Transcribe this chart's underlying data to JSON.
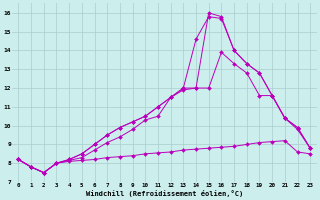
{
  "xlabel": "Windchill (Refroidissement éolien,°C)",
  "background_color": "#cceeed",
  "grid_color": "#aacccc",
  "line_color": "#bb00bb",
  "markersize": 2,
  "xlim": [
    -0.5,
    23.5
  ],
  "ylim": [
    7,
    16.5
  ],
  "xticks": [
    0,
    1,
    2,
    3,
    4,
    5,
    6,
    7,
    8,
    9,
    10,
    11,
    12,
    13,
    14,
    15,
    16,
    17,
    18,
    19,
    20,
    21,
    22,
    23
  ],
  "yticks": [
    7,
    8,
    9,
    10,
    11,
    12,
    13,
    14,
    15,
    16
  ],
  "lines": [
    [
      8.2,
      7.8,
      7.5,
      8.0,
      8.1,
      8.15,
      8.2,
      8.3,
      8.35,
      8.4,
      8.5,
      8.55,
      8.6,
      8.7,
      8.75,
      8.8,
      8.85,
      8.9,
      9.0,
      9.1,
      9.15,
      9.2,
      8.6,
      8.5
    ],
    [
      8.2,
      7.8,
      7.5,
      8.0,
      8.15,
      8.3,
      8.7,
      9.1,
      9.4,
      9.8,
      10.3,
      10.5,
      11.5,
      11.9,
      12.0,
      12.0,
      13.9,
      13.3,
      12.8,
      11.6,
      11.6,
      10.4,
      9.8,
      8.8
    ],
    [
      8.2,
      7.8,
      7.5,
      8.0,
      8.2,
      8.5,
      9.0,
      9.5,
      9.9,
      10.2,
      10.5,
      11.0,
      11.5,
      12.0,
      14.6,
      15.8,
      15.7,
      14.0,
      13.3,
      12.8,
      11.6,
      10.4,
      9.9,
      8.8
    ],
    [
      8.2,
      7.8,
      7.5,
      8.0,
      8.2,
      8.5,
      9.0,
      9.5,
      9.9,
      10.2,
      10.5,
      11.0,
      11.5,
      12.0,
      12.0,
      16.0,
      15.8,
      14.0,
      13.3,
      12.8,
      11.6,
      10.4,
      9.9,
      8.8
    ]
  ]
}
